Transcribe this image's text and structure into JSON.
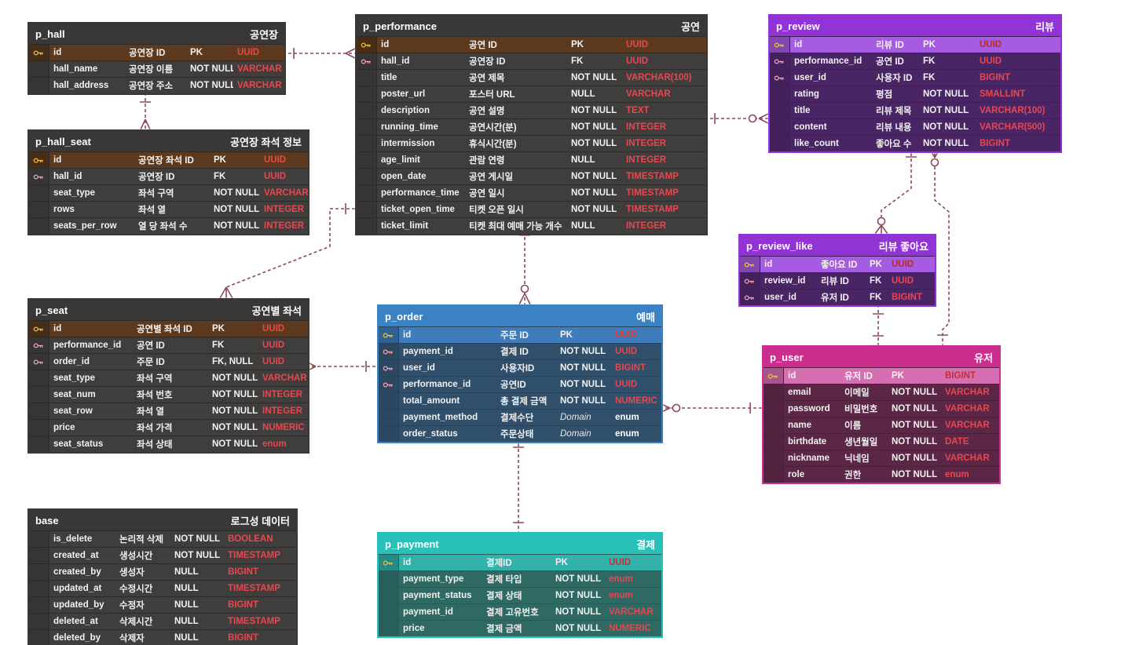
{
  "palette": {
    "background": "#ffffff",
    "relationship_line": "#8b4a57",
    "type_text": "#e8474f",
    "pk_key": "#f2c230",
    "fk_key": "#f0a3b8"
  },
  "tables": [
    {
      "id": "p_hall",
      "title": "p_hall",
      "alias": "공연장",
      "theme": "dark",
      "rows": [
        {
          "key": "pk",
          "name": "id",
          "logical": "공연장 ID",
          "constraint": "PK",
          "type": "UUID"
        },
        {
          "key": null,
          "name": "hall_name",
          "logical": "공연장 이름",
          "constraint": "NOT NULL",
          "type": "VARCHAR"
        },
        {
          "key": null,
          "name": "hall_address",
          "logical": "공연장 주소",
          "constraint": "NOT NULL",
          "type": "VARCHAR"
        }
      ]
    },
    {
      "id": "p_hall_seat",
      "title": "p_hall_seat",
      "alias": "공연장 좌석 정보",
      "theme": "dark",
      "rows": [
        {
          "key": "pk",
          "name": "id",
          "logical": "공연장 좌석 ID",
          "constraint": "PK",
          "type": "UUID"
        },
        {
          "key": "fk",
          "name": "hall_id",
          "logical": "공연장 ID",
          "constraint": "FK",
          "type": "UUID"
        },
        {
          "key": null,
          "name": "seat_type",
          "logical": "좌석 구역",
          "constraint": "NOT NULL",
          "type": "VARCHAR"
        },
        {
          "key": null,
          "name": "rows",
          "logical": "좌석 열",
          "constraint": "NOT NULL",
          "type": "INTEGER"
        },
        {
          "key": null,
          "name": "seats_per_row",
          "logical": "열 당 좌석 수",
          "constraint": "NOT NULL",
          "type": "INTEGER"
        }
      ]
    },
    {
      "id": "p_seat",
      "title": "p_seat",
      "alias": "공연별 좌석",
      "theme": "dark",
      "rows": [
        {
          "key": "pk",
          "name": "id",
          "logical": "공연별 좌석 ID",
          "constraint": "PK",
          "type": "UUID"
        },
        {
          "key": "fk",
          "name": "performance_id",
          "logical": "공연 ID",
          "constraint": "FK",
          "type": "UUID"
        },
        {
          "key": "fk",
          "name": "order_id",
          "logical": "주문 ID",
          "constraint": "FK, NULL",
          "type": "UUID"
        },
        {
          "key": null,
          "name": "seat_type",
          "logical": "좌석 구역",
          "constraint": "NOT NULL",
          "type": "VARCHAR"
        },
        {
          "key": null,
          "name": "seat_num",
          "logical": "좌석 번호",
          "constraint": "NOT NULL",
          "type": "INTEGER"
        },
        {
          "key": null,
          "name": "seat_row",
          "logical": "좌석 열",
          "constraint": "NOT NULL",
          "type": "INTEGER"
        },
        {
          "key": null,
          "name": "price",
          "logical": "좌석 가격",
          "constraint": "NOT NULL",
          "type": "NUMERIC"
        },
        {
          "key": null,
          "name": "seat_status",
          "logical": "좌석 상태",
          "constraint": "NOT NULL",
          "type": "enum"
        }
      ]
    },
    {
      "id": "base",
      "title": "base",
      "alias": "로그성 데이터",
      "theme": "dark",
      "rows": [
        {
          "key": null,
          "name": "is_delete",
          "logical": "논리적 삭제",
          "constraint": "NOT NULL",
          "type": "BOOLEAN"
        },
        {
          "key": null,
          "name": "created_at",
          "logical": "생성시간",
          "constraint": "NOT NULL",
          "type": "TIMESTAMP"
        },
        {
          "key": null,
          "name": "created_by",
          "logical": "생성자",
          "constraint": "NULL",
          "type": "BIGINT"
        },
        {
          "key": null,
          "name": "updated_at",
          "logical": "수정시간",
          "constraint": "NULL",
          "type": "TIMESTAMP"
        },
        {
          "key": null,
          "name": "updated_by",
          "logical": "수정자",
          "constraint": "NULL",
          "type": "BIGINT"
        },
        {
          "key": null,
          "name": "deleted_at",
          "logical": "삭제시간",
          "constraint": "NULL",
          "type": "TIMESTAMP"
        },
        {
          "key": null,
          "name": "deleted_by",
          "logical": "삭제자",
          "constraint": "NULL",
          "type": "BIGINT"
        }
      ]
    },
    {
      "id": "p_performance",
      "title": "p_performance",
      "alias": "공연",
      "theme": "dark",
      "rows": [
        {
          "key": "pk",
          "name": "id",
          "logical": "공연 ID",
          "constraint": "PK",
          "type": "UUID"
        },
        {
          "key": "fk",
          "name": "hall_id",
          "logical": "공연장 ID",
          "constraint": "FK",
          "type": "UUID"
        },
        {
          "key": null,
          "name": "title",
          "logical": "공연 제목",
          "constraint": "NOT NULL",
          "type": "VARCHAR(100)"
        },
        {
          "key": null,
          "name": "poster_url",
          "logical": "포스터 URL",
          "constraint": "NULL",
          "type": "VARCHAR"
        },
        {
          "key": null,
          "name": "description",
          "logical": "공연 설명",
          "constraint": "NOT NULL",
          "type": "TEXT"
        },
        {
          "key": null,
          "name": "running_time",
          "logical": "공연시간(분)",
          "constraint": "NOT NULL",
          "type": "INTEGER"
        },
        {
          "key": null,
          "name": "intermission",
          "logical": "휴식시간(분)",
          "constraint": "NOT NULL",
          "type": "INTEGER"
        },
        {
          "key": null,
          "name": "age_limit",
          "logical": "관람 연령",
          "constraint": "NULL",
          "type": "INTEGER"
        },
        {
          "key": null,
          "name": "open_date",
          "logical": "공연 게시일",
          "constraint": "NOT NULL",
          "type": "TIMESTAMP"
        },
        {
          "key": null,
          "name": "performance_time",
          "logical": "공연 일시",
          "constraint": "NOT NULL",
          "type": "TIMESTAMP"
        },
        {
          "key": null,
          "name": "ticket_open_time",
          "logical": "티켓 오픈 일시",
          "constraint": "NOT NULL",
          "type": "TIMESTAMP"
        },
        {
          "key": null,
          "name": "ticket_limit",
          "logical": "티켓 최대 예매 가능 개수",
          "constraint": "NULL",
          "type": "INTEGER"
        }
      ]
    },
    {
      "id": "p_order",
      "title": "p_order",
      "alias": "예매",
      "theme": "blue",
      "rows": [
        {
          "key": "pk",
          "name": "id",
          "logical": "주문 ID",
          "constraint": "PK",
          "type": "UUID"
        },
        {
          "key": "fk",
          "name": "payment_id",
          "logical": "결제 ID",
          "constraint": "NOT NULL",
          "type": "UUID"
        },
        {
          "key": "fk",
          "name": "user_id",
          "logical": "사용자ID",
          "constraint": "NOT NULL",
          "type": "BIGINT"
        },
        {
          "key": "fk",
          "name": "performance_id",
          "logical": "공연ID",
          "constraint": "NOT NULL",
          "type": "UUID"
        },
        {
          "key": null,
          "name": "total_amount",
          "logical": "총 결제 금액",
          "constraint": "NOT NULL",
          "type": "NUMERIC"
        },
        {
          "key": null,
          "name": "payment_method",
          "logical": "결제수단",
          "constraint": "Domain",
          "type": "enum",
          "type_style": "plain"
        },
        {
          "key": null,
          "name": "order_status",
          "logical": "주문상태",
          "constraint": "Domain",
          "type": "enum",
          "type_style": "plain"
        }
      ]
    },
    {
      "id": "p_payment",
      "title": "p_payment",
      "alias": "결제",
      "theme": "teal",
      "rows": [
        {
          "key": "pk",
          "name": "id",
          "logical": "결제ID",
          "constraint": "PK",
          "type": "UUID"
        },
        {
          "key": null,
          "name": "payment_type",
          "logical": "결제 타입",
          "constraint": "NOT NULL",
          "type": "enum"
        },
        {
          "key": null,
          "name": "payment_status",
          "logical": "결제 상태",
          "constraint": "NOT NULL",
          "type": "enum"
        },
        {
          "key": null,
          "name": "payment_id",
          "logical": "결제 고유번호",
          "constraint": "NOT NULL",
          "type": "VARCHAR"
        },
        {
          "key": null,
          "name": "price",
          "logical": "결제 금액",
          "constraint": "NOT NULL",
          "type": "NUMERIC"
        }
      ]
    },
    {
      "id": "p_review",
      "title": "p_review",
      "alias": "리뷰",
      "theme": "purple",
      "rows": [
        {
          "key": "pk",
          "name": "id",
          "logical": "리뷰 ID",
          "constraint": "PK",
          "type": "UUID"
        },
        {
          "key": "fk",
          "name": "performance_id",
          "logical": "공연 ID",
          "constraint": "FK",
          "type": "UUID"
        },
        {
          "key": "fk",
          "name": "user_id",
          "logical": "사용자 ID",
          "constraint": "FK",
          "type": "BIGINT"
        },
        {
          "key": null,
          "name": "rating",
          "logical": "평점",
          "constraint": "NOT NULL",
          "type": "SMALLINT"
        },
        {
          "key": null,
          "name": "title",
          "logical": "리뷰 제목",
          "constraint": "NOT NULL",
          "type": "VARCHAR(100)"
        },
        {
          "key": null,
          "name": "content",
          "logical": "리뷰 내용",
          "constraint": "NOT NULL",
          "type": "VARCHAR(500)"
        },
        {
          "key": null,
          "name": "like_count",
          "logical": "좋아요 수",
          "constraint": "NOT NULL",
          "type": "BIGINT"
        }
      ]
    },
    {
      "id": "p_review_like",
      "title": "p_review_like",
      "alias": "리뷰 좋아요",
      "theme": "purple",
      "rows": [
        {
          "key": "pk",
          "name": "id",
          "logical": "좋아요 ID",
          "constraint": "PK",
          "type": "UUID"
        },
        {
          "key": "fk",
          "name": "review_id",
          "logical": "리뷰 ID",
          "constraint": "FK",
          "type": "UUID"
        },
        {
          "key": "fk",
          "name": "user_id",
          "logical": "유저 ID",
          "constraint": "FK",
          "type": "BIGINT"
        }
      ]
    },
    {
      "id": "p_user",
      "title": "p_user",
      "alias": "유저",
      "theme": "magenta",
      "rows": [
        {
          "key": "pk",
          "name": "id",
          "logical": "유저 ID",
          "constraint": "PK",
          "type": "BIGINT"
        },
        {
          "key": null,
          "name": "email",
          "logical": "이메일",
          "constraint": "NOT NULL",
          "type": "VARCHAR"
        },
        {
          "key": null,
          "name": "password",
          "logical": "비밀번호",
          "constraint": "NOT NULL",
          "type": "VARCHAR"
        },
        {
          "key": null,
          "name": "name",
          "logical": "이름",
          "constraint": "NOT NULL",
          "type": "VARCHAR"
        },
        {
          "key": null,
          "name": "birthdate",
          "logical": "생년월일",
          "constraint": "NOT NULL",
          "type": "DATE"
        },
        {
          "key": null,
          "name": "nickname",
          "logical": "닉네임",
          "constraint": "NOT NULL",
          "type": "VARCHAR"
        },
        {
          "key": null,
          "name": "role",
          "logical": "권한",
          "constraint": "NOT NULL",
          "type": "enum"
        }
      ]
    }
  ],
  "relationships": [
    {
      "from": "p_hall",
      "from_card": "one",
      "to": "p_performance",
      "to_card": "many",
      "style": "dashed"
    },
    {
      "from": "p_hall",
      "from_card": "one",
      "to": "p_hall_seat",
      "to_card": "many",
      "style": "dashed"
    },
    {
      "from": "p_performance",
      "from_card": "one",
      "to": "p_seat",
      "to_card": "many",
      "style": "dashed"
    },
    {
      "from": "p_order",
      "from_card": "one",
      "to": "p_seat",
      "to_card": "many",
      "style": "dashed"
    },
    {
      "from": "p_order",
      "from_card": "one",
      "to": "p_payment",
      "to_card": "one",
      "style": "dashed"
    },
    {
      "from": "p_user",
      "from_card": "one",
      "to": "p_order",
      "to_card": "zero-or-many",
      "style": "dashed"
    },
    {
      "from": "p_performance",
      "from_card": "one",
      "to": "p_order",
      "to_card": "zero-or-many",
      "style": "dashed"
    },
    {
      "from": "p_performance",
      "from_card": "one",
      "to": "p_review",
      "to_card": "zero-or-many",
      "style": "dashed"
    },
    {
      "from": "p_review",
      "from_card": "one",
      "to": "p_review_like",
      "to_card": "zero-or-many",
      "style": "dashed"
    },
    {
      "from": "p_user",
      "from_card": "one",
      "to": "p_review",
      "to_card": "zero-or-many",
      "style": "dashed"
    },
    {
      "from": "p_review_like",
      "from_card": "one",
      "to": "p_user",
      "to_card": "one",
      "style": "dashed"
    }
  ]
}
